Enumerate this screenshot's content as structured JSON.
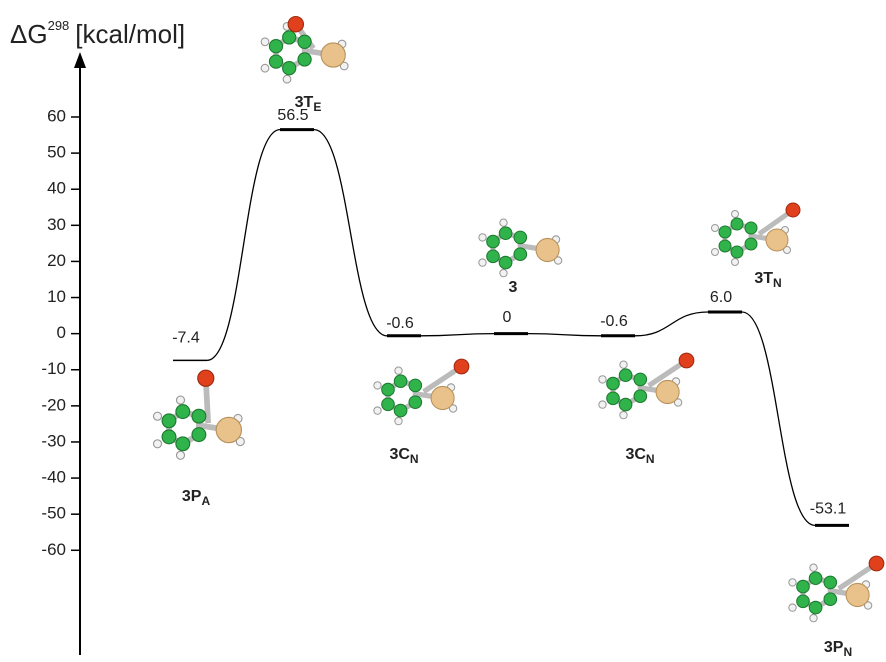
{
  "chart_data": {
    "type": "energy_profile",
    "ylabel": {
      "symbol": "ΔG",
      "sup": "298",
      "unit": "[kcal/mol]"
    },
    "ylim": [
      -89,
      78
    ],
    "yticks": [
      60,
      50,
      40,
      30,
      20,
      10,
      0,
      -10,
      -20,
      -30,
      -40,
      -50,
      -60
    ],
    "categories": [
      {
        "name": "3P",
        "sub": "A"
      },
      {
        "name": "3T",
        "sub": "E"
      },
      {
        "name": "3C",
        "sub": "N"
      },
      {
        "name": "3",
        "sub": null
      },
      {
        "name": "3C",
        "sub": "N"
      },
      {
        "name": "3T",
        "sub": "N"
      },
      {
        "name": "3P",
        "sub": "N"
      }
    ],
    "values": [
      -7.4,
      56.5,
      -0.6,
      0,
      -0.6,
      6,
      -53.1
    ],
    "value_labels": [
      "-7.4",
      "56.5",
      "-0.6",
      "0",
      "-0.6",
      "6.0",
      "-53.1"
    ],
    "color": "#000000"
  }
}
